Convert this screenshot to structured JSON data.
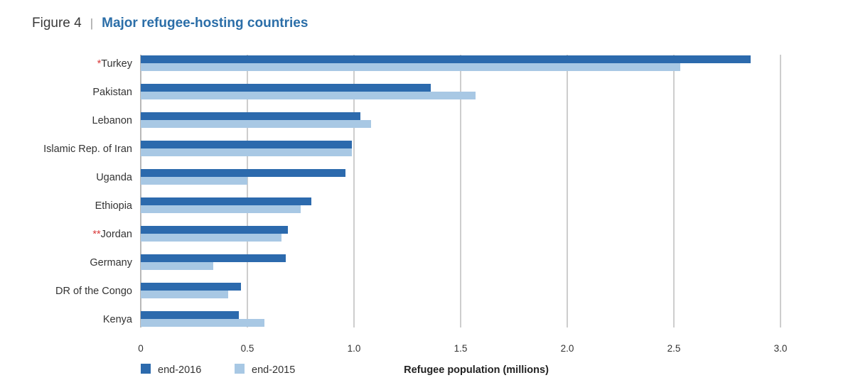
{
  "header": {
    "figure_label": "Figure 4",
    "separator": "|",
    "title": "Major refugee-hosting countries"
  },
  "chart_data": {
    "type": "bar",
    "orientation": "horizontal",
    "title": "Major refugee-hosting countries",
    "xlabel": "Refugee population (millions)",
    "ylabel": "",
    "xlim": [
      0,
      3.0
    ],
    "xticks": [
      "0",
      "0.5",
      "1.0",
      "1.5",
      "2.0",
      "2.5",
      "3.0"
    ],
    "grid": "vertical",
    "legend_position": "bottom-left",
    "categories": [
      {
        "marker": "*",
        "name": "Turkey"
      },
      {
        "marker": "",
        "name": "Pakistan"
      },
      {
        "marker": "",
        "name": "Lebanon"
      },
      {
        "marker": "",
        "name": "Islamic Rep. of Iran"
      },
      {
        "marker": "",
        "name": "Uganda"
      },
      {
        "marker": "",
        "name": "Ethiopia"
      },
      {
        "marker": "**",
        "name": "Jordan"
      },
      {
        "marker": "",
        "name": "Germany"
      },
      {
        "marker": "",
        "name": "DR of the Congo"
      },
      {
        "marker": "",
        "name": "Kenya"
      }
    ],
    "series": [
      {
        "name": "end-2016",
        "color": "#2c6aad",
        "values": [
          2.86,
          1.36,
          1.03,
          0.99,
          0.96,
          0.8,
          0.69,
          0.68,
          0.47,
          0.46
        ]
      },
      {
        "name": "end-2015",
        "color": "#a8c8e4",
        "values": [
          2.53,
          1.57,
          1.08,
          0.99,
          0.5,
          0.75,
          0.66,
          0.34,
          0.41,
          0.58
        ]
      }
    ]
  }
}
